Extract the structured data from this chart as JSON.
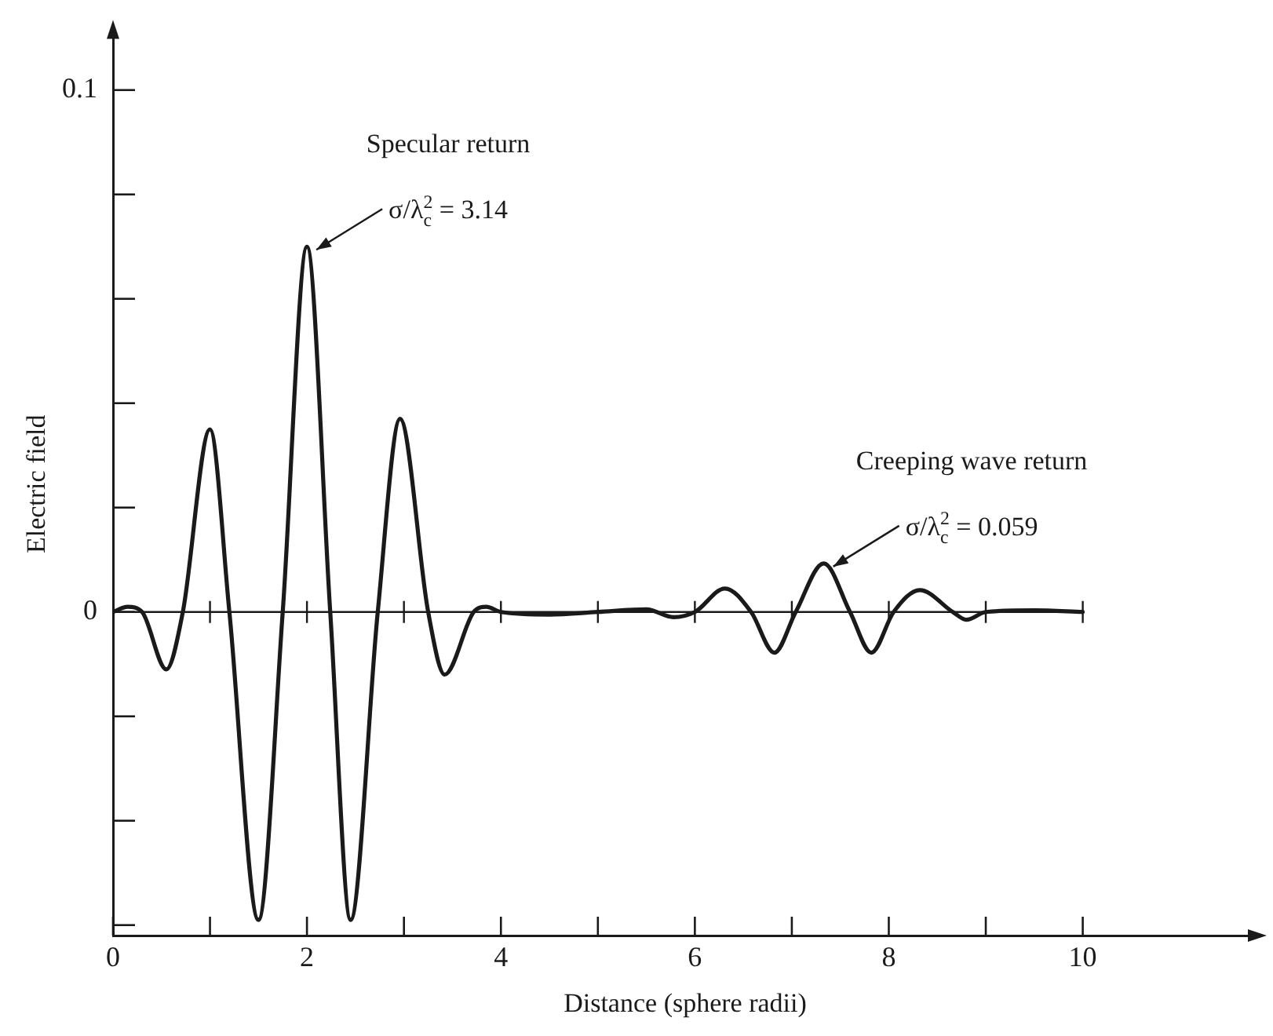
{
  "chart_data": {
    "type": "line",
    "xlabel": "Distance (sphere radii)",
    "ylabel": "Electric field",
    "x": [
      0,
      0.15,
      0.3,
      0.55,
      0.72,
      1.0,
      1.2,
      1.5,
      1.75,
      2.0,
      2.24,
      2.45,
      2.73,
      2.96,
      3.25,
      3.42,
      3.72,
      3.85,
      4.0,
      4.5,
      5.0,
      5.5,
      5.78,
      6.0,
      6.31,
      6.58,
      6.82,
      7.04,
      7.33,
      7.6,
      7.82,
      8.05,
      8.32,
      8.66,
      8.8,
      9.0,
      9.5,
      10
    ],
    "values": [
      0,
      0.001,
      0,
      -0.011,
      0,
      0.035,
      0,
      -0.059,
      0,
      0.07,
      0,
      -0.059,
      0,
      0.037,
      0,
      -0.012,
      0,
      0.001,
      0,
      -0.0005,
      0,
      0.0005,
      -0.001,
      0,
      0.0045,
      0,
      -0.0078,
      0,
      0.0093,
      0,
      -0.0078,
      0,
      0.0042,
      0,
      -0.0015,
      0,
      0.0003,
      0
    ],
    "color": "#1a1a1a",
    "marker": "none",
    "line_style": "solid",
    "grid": false,
    "legend": false,
    "xlim": [
      0,
      11.8
    ],
    "ylim": [
      -0.062,
      0.111
    ],
    "xticks": [
      0,
      {
        "value": 1,
        "label": null
      },
      2,
      {
        "value": 3,
        "label": null
      },
      4,
      {
        "value": 5,
        "label": null
      },
      6,
      {
        "value": 7,
        "label": null
      },
      8,
      {
        "value": 9,
        "label": null
      },
      10
    ],
    "yticks": [
      {
        "value": -0.06,
        "label": null
      },
      {
        "value": -0.04,
        "label": null
      },
      {
        "value": -0.02,
        "label": null
      },
      0,
      {
        "value": 0.02,
        "label": null
      },
      {
        "value": 0.04,
        "label": null
      },
      {
        "value": 0.06,
        "label": null
      },
      {
        "value": 0.08,
        "label": null
      },
      0.1
    ],
    "ref_lines": [
      {
        "axis": "y",
        "value": 0
      }
    ],
    "annotations": [
      "Specular return",
      {
        "text": "σ/λ$^{2}$$_{c}$ = 3.14",
        "x": 2,
        "y": 0.07
      },
      "Creeping wave return",
      {
        "text": "σ/λ$^{2}$$_{c}$ = 0.059",
        "x": 7.33,
        "y": 0.0093
      }
    ]
  }
}
